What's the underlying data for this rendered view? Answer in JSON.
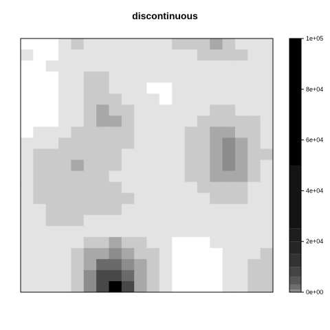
{
  "chart_data": {
    "type": "heatmap",
    "title": "discontinuous",
    "xlabel": "",
    "ylabel": "",
    "grid": false,
    "legend_placement": "right",
    "colorbar": {
      "range": [
        0,
        100000
      ],
      "ticks": [
        0,
        20000,
        40000,
        60000,
        80000,
        100000
      ],
      "tick_labels": [
        "0e+00",
        "2e+04",
        "4e+04",
        "6e+04",
        "8e+04",
        "1e+05"
      ],
      "bins": [
        {
          "from": 0,
          "to": 1000,
          "color": "#8a8a8a"
        },
        {
          "from": 1000,
          "to": 3000,
          "color": "#6e6e6e"
        },
        {
          "from": 3000,
          "to": 6000,
          "color": "#575757"
        },
        {
          "from": 6000,
          "to": 10000,
          "color": "#444444"
        },
        {
          "from": 10000,
          "to": 15000,
          "color": "#333333"
        },
        {
          "from": 15000,
          "to": 20000,
          "color": "#262626"
        },
        {
          "from": 20000,
          "to": 25000,
          "color": "#1e1e1e"
        },
        {
          "from": 25000,
          "to": 50000,
          "color": "#141414"
        },
        {
          "from": 50000,
          "to": 100000,
          "color": "#000000"
        }
      ]
    },
    "cell_colors": [
      "#ffffff",
      "#e3e3e3",
      "#cacaca",
      "#a8a8a8",
      "#8c8c8c",
      "#6a6a6a",
      "#484848",
      "#000000"
    ],
    "cells": [
      [
        0,
        0,
        0,
        1,
        2,
        1,
        1,
        1,
        1,
        1,
        1,
        1,
        2,
        2,
        2,
        3,
        2,
        1,
        1,
        1
      ],
      [
        1,
        0,
        0,
        1,
        1,
        1,
        1,
        1,
        1,
        1,
        1,
        1,
        1,
        1,
        2,
        2,
        2,
        2,
        1,
        1
      ],
      [
        0,
        0,
        1,
        1,
        1,
        1,
        1,
        1,
        1,
        1,
        1,
        1,
        1,
        1,
        1,
        1,
        1,
        1,
        1,
        1
      ],
      [
        0,
        0,
        0,
        1,
        1,
        2,
        2,
        1,
        1,
        1,
        1,
        1,
        1,
        1,
        1,
        1,
        1,
        1,
        1,
        1
      ],
      [
        0,
        0,
        0,
        1,
        1,
        2,
        2,
        1,
        1,
        1,
        0,
        0,
        1,
        1,
        1,
        1,
        1,
        1,
        1,
        1
      ],
      [
        0,
        0,
        0,
        1,
        1,
        2,
        2,
        2,
        1,
        1,
        1,
        0,
        1,
        1,
        1,
        1,
        1,
        1,
        1,
        1
      ],
      [
        0,
        0,
        0,
        1,
        1,
        2,
        3,
        2,
        2,
        1,
        1,
        1,
        1,
        1,
        1,
        2,
        2,
        1,
        1,
        1
      ],
      [
        0,
        0,
        0,
        1,
        1,
        2,
        3,
        3,
        2,
        1,
        1,
        1,
        1,
        1,
        2,
        2,
        2,
        2,
        2,
        1
      ],
      [
        0,
        1,
        1,
        1,
        2,
        2,
        2,
        2,
        2,
        1,
        1,
        1,
        1,
        2,
        2,
        3,
        3,
        2,
        2,
        1
      ],
      [
        1,
        1,
        1,
        2,
        2,
        2,
        2,
        2,
        2,
        1,
        1,
        1,
        1,
        2,
        2,
        3,
        4,
        3,
        2,
        1
      ],
      [
        1,
        2,
        2,
        2,
        2,
        2,
        2,
        2,
        1,
        1,
        1,
        1,
        1,
        2,
        2,
        3,
        4,
        3,
        2,
        2
      ],
      [
        1,
        2,
        2,
        2,
        3,
        2,
        2,
        2,
        1,
        1,
        1,
        1,
        1,
        2,
        2,
        3,
        4,
        3,
        2,
        1
      ],
      [
        1,
        2,
        2,
        2,
        2,
        2,
        2,
        1,
        1,
        1,
        1,
        1,
        1,
        2,
        2,
        3,
        3,
        3,
        2,
        1
      ],
      [
        1,
        2,
        2,
        2,
        2,
        2,
        2,
        2,
        1,
        1,
        1,
        1,
        1,
        1,
        2,
        2,
        2,
        2,
        1,
        1
      ],
      [
        1,
        2,
        2,
        2,
        2,
        2,
        2,
        2,
        2,
        1,
        1,
        1,
        1,
        1,
        1,
        2,
        2,
        2,
        1,
        1
      ],
      [
        1,
        1,
        2,
        2,
        2,
        2,
        2,
        2,
        1,
        1,
        1,
        1,
        1,
        1,
        1,
        1,
        1,
        1,
        1,
        1
      ],
      [
        1,
        1,
        2,
        2,
        2,
        1,
        1,
        1,
        1,
        1,
        1,
        1,
        1,
        1,
        1,
        1,
        1,
        1,
        1,
        1
      ],
      [
        1,
        1,
        1,
        1,
        1,
        1,
        1,
        1,
        1,
        1,
        1,
        1,
        1,
        1,
        1,
        1,
        1,
        1,
        1,
        1
      ],
      [
        1,
        1,
        1,
        1,
        1,
        2,
        2,
        3,
        2,
        2,
        1,
        1,
        0,
        0,
        0,
        1,
        1,
        1,
        1,
        1
      ],
      [
        1,
        1,
        1,
        1,
        2,
        3,
        3,
        4,
        3,
        2,
        2,
        1,
        0,
        0,
        0,
        0,
        1,
        1,
        1,
        2
      ],
      [
        1,
        1,
        1,
        1,
        2,
        3,
        5,
        5,
        4,
        3,
        2,
        1,
        0,
        0,
        0,
        0,
        1,
        1,
        2,
        2
      ],
      [
        1,
        1,
        1,
        1,
        2,
        4,
        6,
        6,
        5,
        3,
        2,
        1,
        0,
        0,
        0,
        0,
        1,
        1,
        2,
        2
      ],
      [
        1,
        1,
        1,
        1,
        2,
        4,
        6,
        7,
        6,
        3,
        2,
        1,
        0,
        0,
        0,
        0,
        1,
        1,
        2,
        2
      ]
    ]
  }
}
